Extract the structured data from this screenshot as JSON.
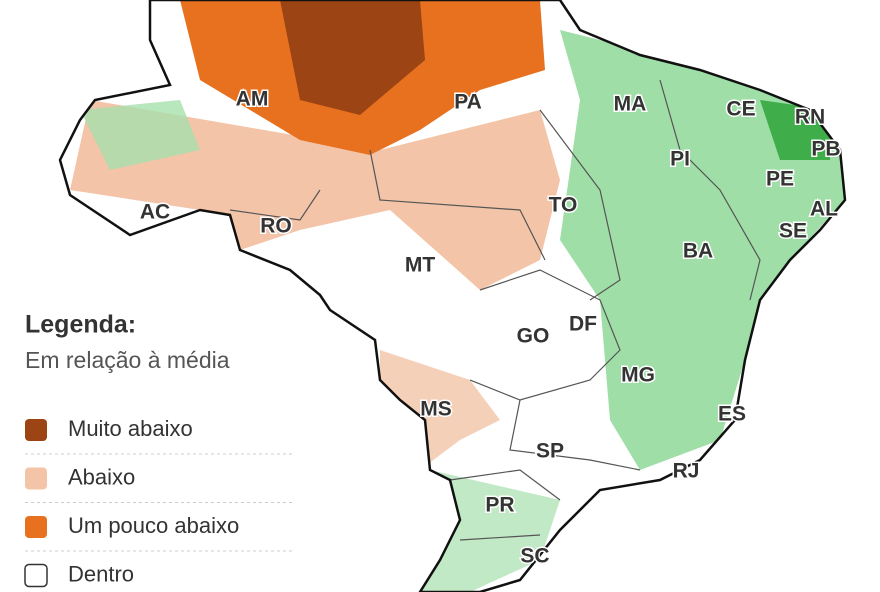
{
  "legend": {
    "title": "Legenda:",
    "subtitle": "Em relação à média",
    "items": [
      {
        "label": "Muito abaixo",
        "color": "#9c4414"
      },
      {
        "label": "Abaixo",
        "color": "#f3c4a8"
      },
      {
        "label": "Um pouco abaixo",
        "color": "#e8711f"
      },
      {
        "label": "Dentro",
        "color": "#ffffff"
      }
    ]
  },
  "states": [
    "AM",
    "PA",
    "MA",
    "CE",
    "RN",
    "PB",
    "PI",
    "PE",
    "AL",
    "SE",
    "AC",
    "RO",
    "TO",
    "MT",
    "BA",
    "GO",
    "DF",
    "MG",
    "MS",
    "ES",
    "SP",
    "RJ",
    "PR",
    "SC"
  ]
}
